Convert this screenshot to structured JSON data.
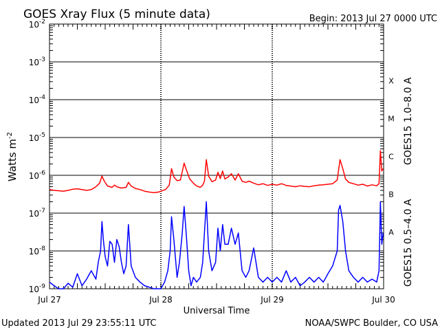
{
  "chart_data": {
    "type": "line",
    "title": "GOES Xray Flux (5 minute data)",
    "begin_label": "Begin:  2013 Jul 27 0000 UTC",
    "xlabel": "Universal Time",
    "ylabel": "Watts m",
    "ylabel_sup": "-2",
    "yscale": "log",
    "ylim": [
      1e-09,
      0.01
    ],
    "xlim": [
      0,
      72
    ],
    "x_unit": "hours since 2013 Jul 27 0000 UTC",
    "x_ticks": [
      {
        "x": 0,
        "label": "Jul 27"
      },
      {
        "x": 24,
        "label": "Jul 28"
      },
      {
        "x": 48,
        "label": "Jul 29"
      },
      {
        "x": 72,
        "label": "Jul 30"
      }
    ],
    "y_ticks": [
      {
        "exp": -9,
        "base": "10",
        "sup": "-9"
      },
      {
        "exp": -8,
        "base": "10",
        "sup": "-8"
      },
      {
        "exp": -7,
        "base": "10",
        "sup": "-7"
      },
      {
        "exp": -6,
        "base": "10",
        "sup": "-6"
      },
      {
        "exp": -5,
        "base": "10",
        "sup": "-5"
      },
      {
        "exp": -4,
        "base": "10",
        "sup": "-4"
      },
      {
        "exp": -3,
        "base": "10",
        "sup": "-3"
      },
      {
        "exp": -2,
        "base": "10",
        "sup": "-2"
      }
    ],
    "flare_classes": [
      {
        "label": "A",
        "exp": -7.5
      },
      {
        "label": "B",
        "exp": -6.5
      },
      {
        "label": "C",
        "exp": -5.5
      },
      {
        "label": "M",
        "exp": -4.5
      },
      {
        "label": "X",
        "exp": -3.5
      }
    ],
    "grid": true,
    "series": [
      {
        "name": "GOES15 1.0–8.0 A",
        "color": "#ff0000",
        "points": [
          [
            0,
            4.2e-07
          ],
          [
            1,
            4e-07
          ],
          [
            2,
            3.9e-07
          ],
          [
            3,
            3.8e-07
          ],
          [
            4,
            4e-07
          ],
          [
            5,
            4.3e-07
          ],
          [
            6,
            4.4e-07
          ],
          [
            7,
            4.2e-07
          ],
          [
            8,
            4e-07
          ],
          [
            9,
            4.2e-07
          ],
          [
            10,
            5e-07
          ],
          [
            10.8,
            6.2e-07
          ],
          [
            11.3,
            9.5e-07
          ],
          [
            11.8,
            7e-07
          ],
          [
            12.5,
            5.2e-07
          ],
          [
            13.5,
            4.8e-07
          ],
          [
            14,
            5.5e-07
          ],
          [
            14.5,
            5e-07
          ],
          [
            15.5,
            4.6e-07
          ],
          [
            16.5,
            4.8e-07
          ],
          [
            17,
            6.5e-07
          ],
          [
            17.6,
            5.2e-07
          ],
          [
            18.5,
            4.5e-07
          ],
          [
            19.5,
            4.2e-07
          ],
          [
            20.5,
            3.8e-07
          ],
          [
            21.5,
            3.6e-07
          ],
          [
            22.5,
            3.5e-07
          ],
          [
            23.5,
            3.6e-07
          ],
          [
            24,
            3.8e-07
          ],
          [
            25,
            4.2e-07
          ],
          [
            25.8,
            5.5e-07
          ],
          [
            26.3,
            1.5e-06
          ],
          [
            26.8,
            9e-07
          ],
          [
            27.5,
            7.2e-07
          ],
          [
            28.2,
            7.5e-07
          ],
          [
            28.6,
            1.25e-06
          ],
          [
            29.0,
            2.1e-06
          ],
          [
            29.5,
            1.4e-06
          ],
          [
            30.2,
            8e-07
          ],
          [
            31.0,
            6.2e-07
          ],
          [
            31.7,
            5.2e-07
          ],
          [
            32.5,
            4.8e-07
          ],
          [
            33.0,
            5.5e-07
          ],
          [
            33.4,
            7e-07
          ],
          [
            33.8,
            2.6e-06
          ],
          [
            34.3,
            9.5e-07
          ],
          [
            35.0,
            6.8e-07
          ],
          [
            35.8,
            7.5e-07
          ],
          [
            36.3,
            1.2e-06
          ],
          [
            36.8,
            8.2e-07
          ],
          [
            37.3,
            1.3e-06
          ],
          [
            37.8,
            8e-07
          ],
          [
            38.5,
            9e-07
          ],
          [
            39.2,
            1.1e-06
          ],
          [
            40.0,
            7.5e-07
          ],
          [
            40.7,
            1.1e-06
          ],
          [
            41.5,
            7e-07
          ],
          [
            42.3,
            6.5e-07
          ],
          [
            43,
            7e-07
          ],
          [
            44,
            6.2e-07
          ],
          [
            45,
            5.6e-07
          ],
          [
            46,
            6e-07
          ],
          [
            47,
            5.4e-07
          ],
          [
            48,
            5.8e-07
          ],
          [
            49,
            5.5e-07
          ],
          [
            50,
            6e-07
          ],
          [
            51,
            5.4e-07
          ],
          [
            52,
            5.2e-07
          ],
          [
            53,
            5e-07
          ],
          [
            54,
            5.3e-07
          ],
          [
            55,
            5.1e-07
          ],
          [
            56,
            5e-07
          ],
          [
            57,
            5.3e-07
          ],
          [
            58,
            5.5e-07
          ],
          [
            59,
            5.6e-07
          ],
          [
            60,
            5.8e-07
          ],
          [
            61,
            6e-07
          ],
          [
            62,
            7.5e-07
          ],
          [
            62.6,
            2.6e-06
          ],
          [
            63.2,
            1.5e-06
          ],
          [
            63.8,
            8e-07
          ],
          [
            64.5,
            6.5e-07
          ],
          [
            65.5,
            6e-07
          ],
          [
            66.5,
            5.5e-07
          ],
          [
            67.5,
            5.8e-07
          ],
          [
            68.5,
            5.2e-07
          ],
          [
            69.5,
            5.6e-07
          ],
          [
            70.5,
            5.3e-07
          ],
          [
            71.0,
            6e-07
          ],
          [
            71.3,
            4.5e-06
          ],
          [
            71.6,
            1.3e-06
          ],
          [
            71.9,
            1.5e-06
          ]
        ]
      },
      {
        "name": "GOES15 0.5–4.0 A",
        "color": "#0000ff",
        "points": [
          [
            0,
            1.5e-09
          ],
          [
            1,
            1.2e-09
          ],
          [
            2,
            1e-09
          ],
          [
            3,
            1e-09
          ],
          [
            4,
            1.4e-09
          ],
          [
            5,
            1.1e-09
          ],
          [
            6,
            2.5e-09
          ],
          [
            7,
            1.2e-09
          ],
          [
            8,
            1.8e-09
          ],
          [
            9,
            3e-09
          ],
          [
            10,
            1.8e-09
          ],
          [
            10.5,
            5e-09
          ],
          [
            11.0,
            1e-08
          ],
          [
            11.3,
            6e-08
          ],
          [
            11.6,
            2e-08
          ],
          [
            12.0,
            7e-09
          ],
          [
            12.5,
            4e-09
          ],
          [
            13.0,
            1.8e-08
          ],
          [
            13.5,
            1.5e-08
          ],
          [
            14.0,
            5e-09
          ],
          [
            14.5,
            2e-08
          ],
          [
            15.0,
            1.3e-08
          ],
          [
            15.5,
            5e-09
          ],
          [
            16.0,
            2.5e-09
          ],
          [
            16.5,
            4e-09
          ],
          [
            17.0,
            5e-08
          ],
          [
            17.6,
            4e-09
          ],
          [
            18.5,
            2e-09
          ],
          [
            19.5,
            1.5e-09
          ],
          [
            20.5,
            1.2e-09
          ],
          [
            21.5,
            1.1e-09
          ],
          [
            22.5,
            1e-09
          ],
          [
            23.5,
            1e-09
          ],
          [
            24,
            1e-09
          ],
          [
            24.8,
            1.5e-09
          ],
          [
            25.5,
            3e-09
          ],
          [
            26.0,
            1e-08
          ],
          [
            26.3,
            8e-08
          ],
          [
            26.8,
            2e-08
          ],
          [
            27.5,
            2e-09
          ],
          [
            28.0,
            5e-09
          ],
          [
            28.6,
            3e-08
          ],
          [
            29.0,
            1.5e-07
          ],
          [
            29.5,
            2.5e-08
          ],
          [
            30.0,
            3e-09
          ],
          [
            30.5,
            1.2e-09
          ],
          [
            31.0,
            2e-09
          ],
          [
            31.7,
            1.5e-09
          ],
          [
            32.5,
            2e-09
          ],
          [
            33.0,
            5e-09
          ],
          [
            33.8,
            2e-07
          ],
          [
            34.3,
            1e-08
          ],
          [
            35.0,
            3e-09
          ],
          [
            35.8,
            5e-09
          ],
          [
            36.3,
            4e-08
          ],
          [
            36.8,
            1e-08
          ],
          [
            37.3,
            5e-08
          ],
          [
            37.8,
            1.5e-08
          ],
          [
            38.5,
            1.5e-08
          ],
          [
            39.2,
            4e-08
          ],
          [
            40.0,
            1.5e-08
          ],
          [
            40.7,
            3e-08
          ],
          [
            41.5,
            3e-09
          ],
          [
            42.3,
            2e-09
          ],
          [
            43,
            3e-09
          ],
          [
            44,
            1.2e-08
          ],
          [
            45,
            2e-09
          ],
          [
            46,
            1.5e-09
          ],
          [
            47,
            2e-09
          ],
          [
            48,
            1.5e-09
          ],
          [
            49,
            2e-09
          ],
          [
            50,
            1.5e-09
          ],
          [
            51,
            3e-09
          ],
          [
            52,
            1.5e-09
          ],
          [
            53,
            2e-09
          ],
          [
            54,
            1.2e-09
          ],
          [
            55,
            1.5e-09
          ],
          [
            56,
            2e-09
          ],
          [
            57,
            1.5e-09
          ],
          [
            58,
            2e-09
          ],
          [
            59,
            1.5e-09
          ],
          [
            60,
            2.5e-09
          ],
          [
            61,
            4e-09
          ],
          [
            62,
            1e-08
          ],
          [
            62.3,
            1.2e-07
          ],
          [
            62.6,
            1.6e-07
          ],
          [
            63.2,
            6e-08
          ],
          [
            63.8,
            1e-08
          ],
          [
            64.5,
            3e-09
          ],
          [
            65.5,
            2e-09
          ],
          [
            66.5,
            1.5e-09
          ],
          [
            67.5,
            2e-09
          ],
          [
            68.5,
            1.5e-09
          ],
          [
            69.5,
            1.8e-09
          ],
          [
            70.5,
            1.5e-09
          ],
          [
            71.0,
            3e-09
          ],
          [
            71.3,
            2e-07
          ],
          [
            71.6,
            1.5e-08
          ],
          [
            71.9,
            3e-08
          ]
        ]
      }
    ]
  },
  "footer": {
    "updated": "Updated 2013 Jul 29 23:55:11 UTC",
    "credit": "NOAA/SWPC Boulder, CO USA"
  }
}
